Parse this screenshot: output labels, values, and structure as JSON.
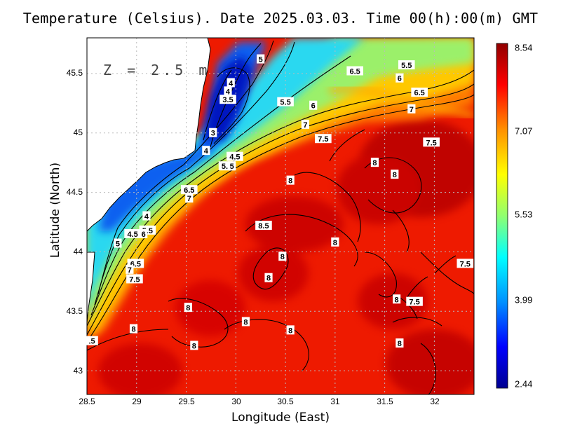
{
  "title": "Temperature (Celsius). Date 2025.03.03. Time 00(h):00(m) GMT",
  "depth_label": "Z = 2.5 m",
  "chart_data": {
    "type": "heatmap",
    "title": "Temperature (Celsius). Date 2025.03.03. Time 00(h):00(m) GMT",
    "xlabel": "Longitude (East)",
    "ylabel": "Latitude (North)",
    "xlim": [
      28.5,
      32.4
    ],
    "ylim": [
      42.8,
      45.8
    ],
    "x_ticks": [
      "28.5",
      "29",
      "29.5",
      "30",
      "30.5",
      "31",
      "31.5",
      "32"
    ],
    "y_ticks": [
      "43",
      "43.5",
      "44",
      "44.5",
      "45",
      "45.5"
    ],
    "grid": true,
    "colorbar": {
      "min": 2.44,
      "max": 8.54,
      "labels": [
        "8.54",
        "7.07",
        "5.53",
        "3.99",
        "2.44"
      ],
      "colors": [
        "#000090",
        "#0000ff",
        "#0090ff",
        "#00ffff",
        "#90ff70",
        "#ffff00",
        "#ff9000",
        "#ff0000",
        "#900000"
      ]
    },
    "contour_labels": [
      {
        "text": "5",
        "lon": 30.25,
        "lat": 45.62
      },
      {
        "text": "4",
        "lon": 29.95,
        "lat": 45.42
      },
      {
        "text": "4",
        "lon": 29.92,
        "lat": 45.35
      },
      {
        "text": "3.5",
        "lon": 29.92,
        "lat": 45.28
      },
      {
        "text": "6.5",
        "lon": 31.2,
        "lat": 45.52
      },
      {
        "text": "5.5",
        "lon": 31.72,
        "lat": 45.57
      },
      {
        "text": "6",
        "lon": 31.65,
        "lat": 45.46
      },
      {
        "text": "6.5",
        "lon": 31.85,
        "lat": 45.34
      },
      {
        "text": "7",
        "lon": 31.77,
        "lat": 45.2
      },
      {
        "text": "5.5",
        "lon": 30.5,
        "lat": 45.26
      },
      {
        "text": "6",
        "lon": 30.78,
        "lat": 45.23
      },
      {
        "text": "7",
        "lon": 30.7,
        "lat": 45.07
      },
      {
        "text": "7.5",
        "lon": 30.88,
        "lat": 44.95
      },
      {
        "text": "7.5",
        "lon": 31.97,
        "lat": 44.92
      },
      {
        "text": "3",
        "lon": 29.77,
        "lat": 45.0
      },
      {
        "text": "4",
        "lon": 29.7,
        "lat": 44.85
      },
      {
        "text": "4.5",
        "lon": 29.99,
        "lat": 44.8
      },
      {
        "text": "5.5",
        "lon": 29.91,
        "lat": 44.72
      },
      {
        "text": "5",
        "lon": 29.96,
        "lat": 44.72
      },
      {
        "text": "6.5",
        "lon": 29.53,
        "lat": 44.52
      },
      {
        "text": "7",
        "lon": 29.53,
        "lat": 44.45
      },
      {
        "text": "8",
        "lon": 30.55,
        "lat": 44.6
      },
      {
        "text": "8",
        "lon": 31.4,
        "lat": 44.75
      },
      {
        "text": "8",
        "lon": 31.6,
        "lat": 44.65
      },
      {
        "text": "4",
        "lon": 29.1,
        "lat": 44.3
      },
      {
        "text": "4.5",
        "lon": 28.96,
        "lat": 44.15
      },
      {
        "text": "5.5",
        "lon": 29.11,
        "lat": 44.18
      },
      {
        "text": "6",
        "lon": 29.07,
        "lat": 44.15
      },
      {
        "text": "5",
        "lon": 28.81,
        "lat": 44.07
      },
      {
        "text": "8.5",
        "lon": 30.28,
        "lat": 44.22
      },
      {
        "text": "8",
        "lon": 31.0,
        "lat": 44.08
      },
      {
        "text": "8",
        "lon": 30.47,
        "lat": 43.96
      },
      {
        "text": "6.5",
        "lon": 28.99,
        "lat": 43.9
      },
      {
        "text": "7",
        "lon": 28.93,
        "lat": 43.85
      },
      {
        "text": "7.5",
        "lon": 28.98,
        "lat": 43.77
      },
      {
        "text": "8",
        "lon": 30.33,
        "lat": 43.78
      },
      {
        "text": "7.5",
        "lon": 32.31,
        "lat": 43.9
      },
      {
        "text": "8",
        "lon": 31.62,
        "lat": 43.6
      },
      {
        "text": "7.5",
        "lon": 31.8,
        "lat": 43.58
      },
      {
        "text": "8",
        "lon": 29.52,
        "lat": 43.53
      },
      {
        "text": "8",
        "lon": 30.1,
        "lat": 43.41
      },
      {
        "text": "8",
        "lon": 28.97,
        "lat": 43.35
      },
      {
        "text": "8",
        "lon": 30.55,
        "lat": 43.34
      },
      {
        "text": ".5",
        "lon": 28.55,
        "lat": 43.25
      },
      {
        "text": "8",
        "lon": 29.58,
        "lat": 43.21
      },
      {
        "text": "8",
        "lon": 31.65,
        "lat": 43.23
      }
    ]
  }
}
